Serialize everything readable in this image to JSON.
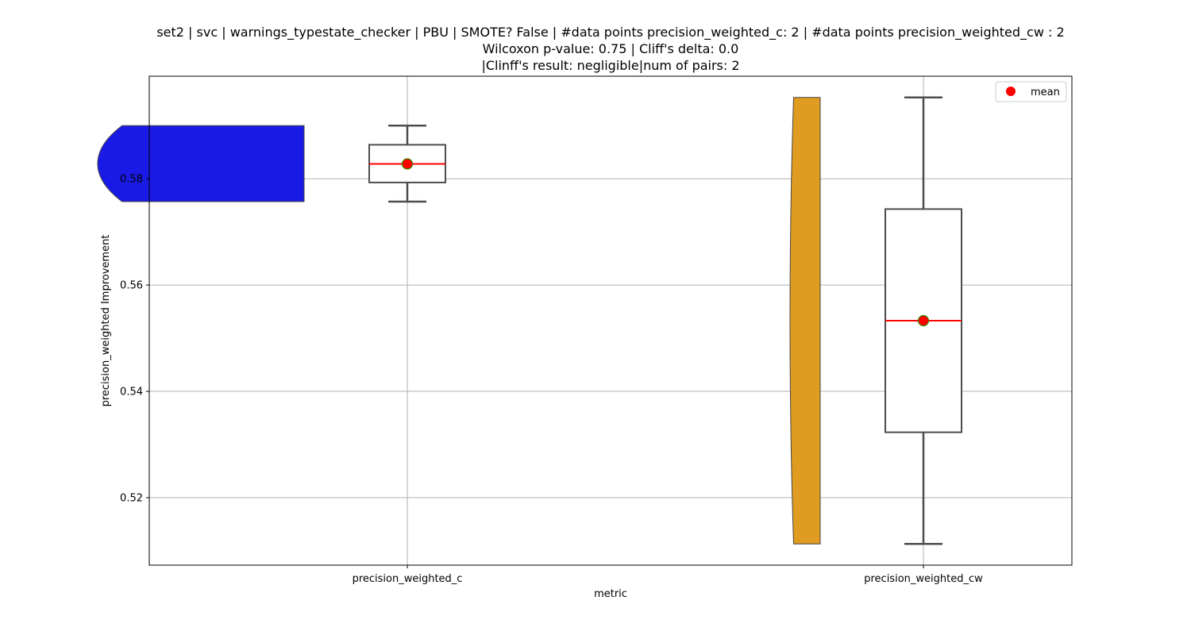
{
  "chart_data": {
    "type": "box",
    "title_lines": [
      "set2 | svc | warnings_typestate_checker | PBU | SMOTE? False | #data points precision_weighted_c: 2 | #data points precision_weighted_cw : 2",
      "Wilcoxon p-value: 0.75 | Cliff's delta: 0.0",
      "|Clinff's result: negligible|num of pairs: 2"
    ],
    "xlabel": "metric",
    "ylabel": "precision_weighted Improvement",
    "ylim": [
      0.5073,
      0.5993
    ],
    "yticks": [
      "0.52",
      "0.54",
      "0.56",
      "0.58"
    ],
    "ytick_values": [
      0.52,
      0.54,
      0.56,
      0.58
    ],
    "grid": true,
    "legend": {
      "position": "top-right",
      "entries": [
        "mean"
      ]
    },
    "categories": [
      "precision_weighted_c",
      "precision_weighted_cw"
    ],
    "series": [
      {
        "category": "precision_weighted_c",
        "violin_color": "#1a1ae6",
        "values": [
          0.5757,
          0.59
        ],
        "min": 0.5757,
        "q1": 0.5793,
        "median": 0.5828,
        "q3": 0.5864,
        "max": 0.59,
        "mean": 0.5828
      },
      {
        "category": "precision_weighted_cw",
        "violin_color": "#e09c20",
        "values": [
          0.5113,
          0.5953
        ],
        "min": 0.5113,
        "q1": 0.5323,
        "median": 0.5533,
        "q3": 0.5743,
        "max": 0.5953,
        "mean": 0.5533
      }
    ],
    "colors": {
      "median": "#ff0000",
      "mean_fill": "#ff0000",
      "mean_edge": "#3a8a00",
      "box_edge": "#4d4d4d",
      "grid": "#b0b0b0"
    }
  }
}
